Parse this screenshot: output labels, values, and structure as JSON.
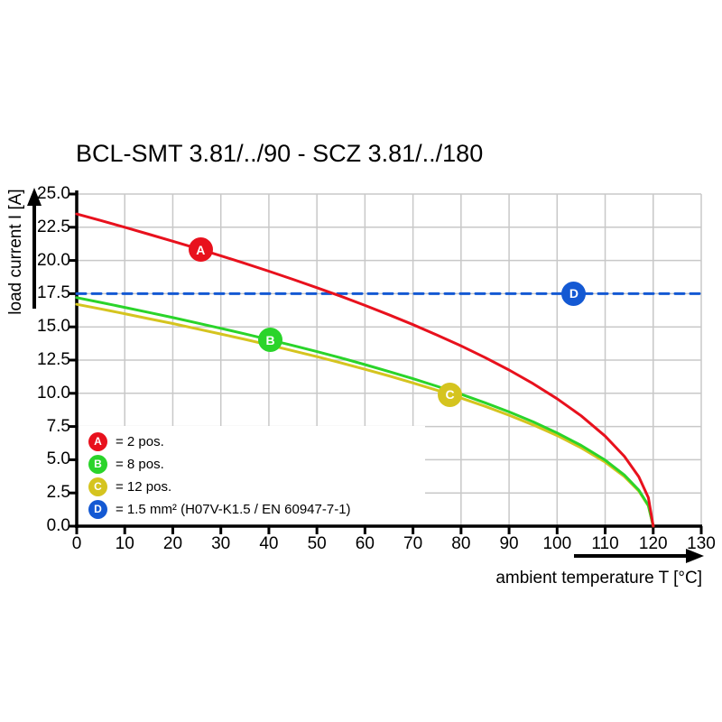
{
  "title": "BCL-SMT 3.81/../90 - SCZ 3.81/../180",
  "colors": {
    "red": "#e8111d",
    "green": "#2ad42a",
    "yellow": "#d5c41f",
    "blue": "#1459d3",
    "grid": "#c8c8c8",
    "axis": "#000000",
    "background": "#ffffff"
  },
  "chart_data": {
    "type": "line",
    "title": "BCL-SMT 3.81/../90 - SCZ 3.81/../180",
    "xlabel": "ambient temperature T [°C]",
    "ylabel": "load current I [A]",
    "xlim": [
      0,
      130
    ],
    "ylim": [
      0,
      25
    ],
    "grid": true,
    "x_ticks": [
      0,
      10,
      20,
      30,
      40,
      50,
      60,
      70,
      80,
      90,
      100,
      110,
      120,
      130
    ],
    "x_tick_labels": [
      "0",
      "10",
      "20",
      "30",
      "40",
      "50",
      "60",
      "70",
      "80",
      "90",
      "100",
      "110",
      "120",
      "130"
    ],
    "y_ticks": [
      0,
      2.5,
      5,
      7.5,
      10,
      12.5,
      15,
      17.5,
      20,
      22.5,
      25
    ],
    "y_tick_labels": [
      "0.0",
      "2.5",
      "5.0",
      "7.5",
      "10.0",
      "12.5",
      "15.0",
      "17.5",
      "20.0",
      "22.5",
      "25.0"
    ],
    "series": [
      {
        "key": "A",
        "name": "2 pos.",
        "color": "#e8111d",
        "style": "solid",
        "marker_at": {
          "x": 25.8,
          "y": 20.8
        },
        "points": [
          [
            0,
            23.5
          ],
          [
            5,
            23.01
          ],
          [
            10,
            22.5
          ],
          [
            15,
            21.98
          ],
          [
            20,
            21.45
          ],
          [
            25,
            20.91
          ],
          [
            30,
            20.35
          ],
          [
            35,
            19.78
          ],
          [
            40,
            19.19
          ],
          [
            45,
            18.58
          ],
          [
            50,
            17.95
          ],
          [
            55,
            17.3
          ],
          [
            60,
            16.62
          ],
          [
            65,
            15.91
          ],
          [
            70,
            15.17
          ],
          [
            75,
            14.39
          ],
          [
            80,
            13.57
          ],
          [
            85,
            12.69
          ],
          [
            90,
            11.75
          ],
          [
            95,
            10.73
          ],
          [
            100,
            9.59
          ],
          [
            105,
            8.31
          ],
          [
            110,
            6.78
          ],
          [
            114,
            5.26
          ],
          [
            117,
            3.72
          ],
          [
            119,
            2.15
          ],
          [
            120,
            0
          ]
        ]
      },
      {
        "key": "B",
        "name": "8 pos.",
        "color": "#2ad42a",
        "style": "solid",
        "marker_at": {
          "x": 40.3,
          "y": 14.0
        },
        "points": [
          [
            0,
            17.2
          ],
          [
            5,
            16.84
          ],
          [
            10,
            16.47
          ],
          [
            15,
            16.09
          ],
          [
            20,
            15.7
          ],
          [
            25,
            15.3
          ],
          [
            30,
            14.89
          ],
          [
            35,
            14.48
          ],
          [
            40,
            14.04
          ],
          [
            45,
            13.6
          ],
          [
            50,
            13.14
          ],
          [
            55,
            12.66
          ],
          [
            60,
            12.16
          ],
          [
            65,
            11.64
          ],
          [
            70,
            11.1
          ],
          [
            75,
            10.53
          ],
          [
            80,
            9.93
          ],
          [
            85,
            9.29
          ],
          [
            90,
            8.6
          ],
          [
            95,
            7.85
          ],
          [
            100,
            7.02
          ],
          [
            105,
            6.08
          ],
          [
            110,
            4.97
          ],
          [
            114,
            3.85
          ],
          [
            117,
            2.72
          ],
          [
            119,
            1.57
          ],
          [
            120,
            0
          ]
        ]
      },
      {
        "key": "C",
        "name": "12 pos.",
        "color": "#d5c41f",
        "style": "solid",
        "marker_at": {
          "x": 77.7,
          "y": 9.9
        },
        "points": [
          [
            0,
            16.7
          ],
          [
            5,
            16.35
          ],
          [
            10,
            15.99
          ],
          [
            15,
            15.62
          ],
          [
            20,
            15.25
          ],
          [
            25,
            14.86
          ],
          [
            30,
            14.46
          ],
          [
            35,
            14.06
          ],
          [
            40,
            13.64
          ],
          [
            45,
            13.2
          ],
          [
            50,
            12.76
          ],
          [
            55,
            12.29
          ],
          [
            60,
            11.81
          ],
          [
            65,
            11.31
          ],
          [
            70,
            10.78
          ],
          [
            75,
            10.23
          ],
          [
            80,
            9.64
          ],
          [
            85,
            9.02
          ],
          [
            90,
            8.35
          ],
          [
            95,
            7.62
          ],
          [
            100,
            6.82
          ],
          [
            105,
            5.9
          ],
          [
            110,
            4.82
          ],
          [
            114,
            3.73
          ],
          [
            117,
            2.64
          ],
          [
            119,
            1.52
          ],
          [
            120,
            0
          ]
        ]
      },
      {
        "key": "D",
        "name": "1.5 mm² (H07V-K1.5 / EN 60947-7-1)",
        "color": "#1459d3",
        "style": "dashed",
        "marker_at": {
          "x": 103.5,
          "y": 17.5
        },
        "points": [
          [
            0,
            17.5
          ],
          [
            130,
            17.5
          ]
        ]
      }
    ],
    "legend": {
      "position": "bottom-left",
      "items": [
        {
          "key": "A",
          "label": "= 2 pos."
        },
        {
          "key": "B",
          "label": "= 8 pos."
        },
        {
          "key": "C",
          "label": "= 12 pos."
        },
        {
          "key": "D",
          "label": "= 1.5 mm² (H07V-K1.5 / EN 60947-7-1)"
        }
      ]
    }
  }
}
